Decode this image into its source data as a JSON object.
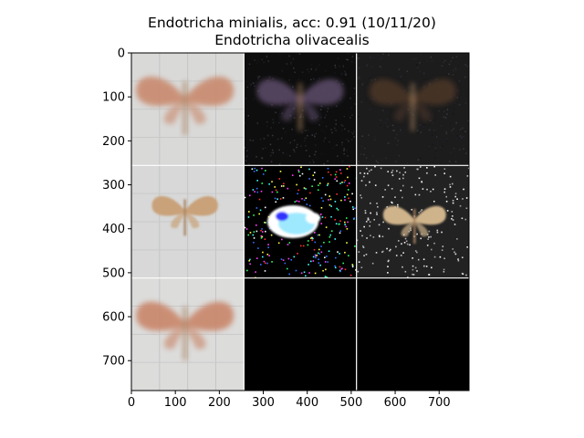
{
  "title": {
    "line1": "Endotricha minialis, acc: 0.91 (10/11/20)",
    "line2": "Endotricha olivacealis"
  },
  "chart_data": {
    "type": "image-grid",
    "rows": 3,
    "cols": 3,
    "tile_size": 256,
    "xlim": [
      0,
      768
    ],
    "ylim": [
      768,
      0
    ],
    "x_ticks": [
      0,
      100,
      200,
      300,
      400,
      500,
      600,
      700
    ],
    "y_ticks": [
      0,
      100,
      200,
      300,
      400,
      500,
      600,
      700
    ],
    "separator_color": "#ffffff",
    "tiles": [
      {
        "row": 0,
        "col": 0,
        "kind": "photo",
        "bg": "#d9d9d8",
        "subject": "moth-orange-blurred",
        "subject_color": "#c98a6e"
      },
      {
        "row": 0,
        "col": 1,
        "kind": "saliency-dark",
        "bg": "#0e0e0e",
        "subject": "faint-moth-noise",
        "subject_color": "#5a4a66"
      },
      {
        "row": 0,
        "col": 2,
        "kind": "saliency-dark",
        "bg": "#1c1c1c",
        "subject": "faint-moth-brown",
        "subject_color": "#4a3426"
      },
      {
        "row": 1,
        "col": 0,
        "kind": "photo",
        "bg": "#d7d8d7",
        "subject": "moth-small-tan",
        "subject_color": "#c9a27a"
      },
      {
        "row": 1,
        "col": 1,
        "kind": "saliency-color",
        "bg": "#000000",
        "subject": "bright-blob-cyan",
        "subject_color": "#9fe9ff"
      },
      {
        "row": 1,
        "col": 2,
        "kind": "saliency-gray",
        "bg": "#222222",
        "subject": "moth-mask-tan",
        "subject_color": "#cfb38a"
      },
      {
        "row": 2,
        "col": 0,
        "kind": "photo",
        "bg": "#dcdcdb",
        "subject": "moth-orange-blurred",
        "subject_color": "#c9866b"
      },
      {
        "row": 2,
        "col": 1,
        "kind": "blank",
        "bg": "#000000"
      },
      {
        "row": 2,
        "col": 2,
        "kind": "blank",
        "bg": "#000000"
      }
    ]
  }
}
